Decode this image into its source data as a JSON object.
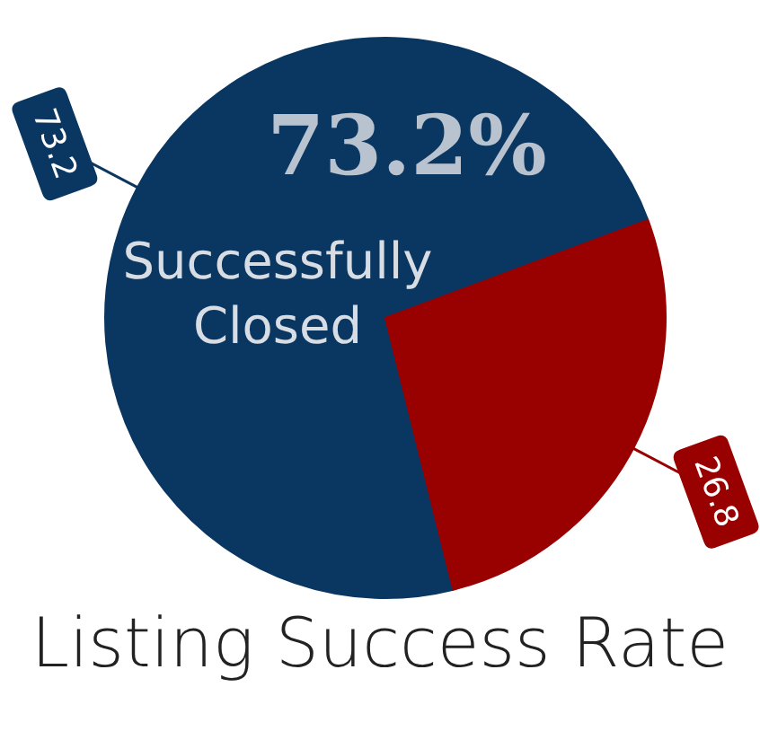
{
  "chart_data": {
    "type": "pie",
    "title": "Listing Success Rate",
    "categories": [
      "Successfully Closed",
      null
    ],
    "values": [
      73.2,
      26.8
    ],
    "colors": [
      "#0a3761",
      "#990000"
    ],
    "data_labels": true,
    "annotations": [
      "73.2%"
    ],
    "legend": false
  }
}
